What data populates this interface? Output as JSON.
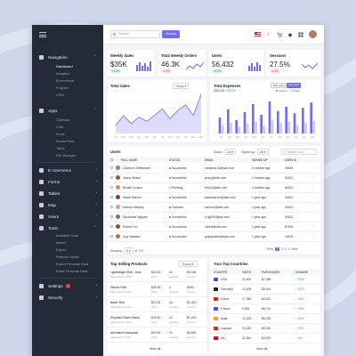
{
  "colors": {
    "accent": "#6f6cf5",
    "positive": "#1fa36a",
    "negative": "#e8453c",
    "warning": "#f0a020",
    "sidebar_bg": "#242a38"
  },
  "topbar": {
    "search_placeholder": "Search...",
    "search_button": "Search",
    "icons": [
      "flag-us-icon",
      "moon-icon",
      "cart-icon",
      "bell-icon",
      "grid-icon",
      "avatar"
    ]
  },
  "sidebar": {
    "sections": [
      {
        "label": "Navigation",
        "icon": "home-icon",
        "expanded": true,
        "items": [
          "Dashboard",
          "Analytics",
          "Ecommerce",
          "Projects",
          "CRM"
        ]
      },
      {
        "label": "Apps",
        "icon": "apps-icon",
        "expanded": true,
        "items": [
          "Calendar",
          "Chat",
          "Email",
          "Social Feed",
          "Tasks",
          "File Manager"
        ]
      },
      {
        "label": "E-commerce",
        "icon": "cart-icon"
      },
      {
        "label": "Forms",
        "icon": "forms-icon"
      },
      {
        "label": "Tables",
        "icon": "tables-icon"
      },
      {
        "label": "Map",
        "icon": "map-icon"
      },
      {
        "label": "Users",
        "icon": "users-icon"
      },
      {
        "label": "Tools",
        "icon": "tools-icon",
        "expanded": true,
        "items": [
          "Available Tools",
          "Import",
          "Export",
          "Platform Health",
          "Export Personal Data",
          "Erase Personal Data"
        ]
      },
      {
        "label": "Settings",
        "icon": "gear-icon",
        "badge": true
      },
      {
        "label": "Security",
        "icon": "shield-icon"
      }
    ]
  },
  "stats": [
    {
      "title": "Weekly Sales",
      "value": "$35K",
      "delta": "+4.5%",
      "positive": true
    },
    {
      "title": "Total Weekly Orders",
      "value": "46.3K",
      "delta": "-1.5%",
      "positive": false
    },
    {
      "title": "Users",
      "value": "56,432",
      "delta": "+6.5%",
      "positive": true
    },
    {
      "title": "Sessions",
      "value": "27.5%",
      "delta": "-1.5%",
      "positive": false
    }
  ],
  "total_sales": {
    "title": "Total Sales",
    "dropdown": "Yearly ▾"
  },
  "total_expenses": {
    "title": "Total Expenses",
    "value": "$45,000",
    "delta": "+23.7%",
    "toggle": [
      "This year",
      "Last year"
    ],
    "legend": [
      "Income",
      "Outgo"
    ]
  },
  "chart_data": [
    {
      "type": "area",
      "x": [
        "Jan",
        "Feb",
        "Mar",
        "Apr",
        "May",
        "Jun",
        "Jul",
        "Aug",
        "Sep",
        "Oct",
        "Nov",
        "Dec"
      ],
      "series": [
        {
          "values": [
            10,
            22,
            12,
            20,
            15,
            22,
            30,
            18,
            28,
            35,
            22,
            48
          ]
        }
      ],
      "ylim": [
        0,
        50
      ]
    },
    {
      "type": "bar",
      "x": [
        "Jan",
        "Feb",
        "Mar",
        "Apr",
        "May",
        "Jun",
        "Jul",
        "Aug",
        "Sep",
        "Oct",
        "Nov",
        "Dec"
      ],
      "series": [
        {
          "name": "Income",
          "values": [
            30,
            45,
            25,
            40,
            55,
            35,
            60,
            42,
            50,
            38,
            48,
            58
          ]
        },
        {
          "name": "Outgo",
          "values": [
            15,
            20,
            12,
            18,
            22,
            14,
            25,
            20,
            22,
            16,
            21,
            24
          ]
        }
      ],
      "ylim": [
        0,
        70
      ]
    }
  ],
  "users": {
    "title": "Users",
    "status_label": "Status:",
    "status_value": "All ▾",
    "signed_label": "Signed up:",
    "signed_value": "All ▾",
    "search_placeholder": "Search users",
    "columns": [
      "Full Name",
      "Status",
      "Email",
      "Signed Up",
      "User ID"
    ],
    "rows": [
      {
        "name": "Cameron Williamson",
        "status": "Successful",
        "email": "cameron14@site.com",
        "signed": "6 months ago",
        "id": "35645"
      },
      {
        "name": "Jenny Wilson",
        "status": "Successful",
        "email": "jenny@site.com",
        "signed": "2 months ago",
        "id": "54412"
      },
      {
        "name": "Bessie Cooper",
        "status": "Pending",
        "email": "bes12@site.com",
        "signed": "4 months ago",
        "id": "56321"
      },
      {
        "name": "Wade Warren",
        "status": "Successful",
        "email": "wadewarren@site.com",
        "signed": "1 year ago",
        "id": "54512"
      },
      {
        "name": "Kathryn Murphy",
        "status": "Overdue",
        "email": "kat.mur@site.com",
        "signed": "2 year ago",
        "id": "43321"
      },
      {
        "name": "Savannah Nguyen",
        "status": "Successful",
        "email": "s.ng290@site.com",
        "signed": "1 year ago",
        "id": "54512"
      },
      {
        "name": "Robert Fox",
        "status": "Successful",
        "email": "robert@site.com",
        "signed": "1 year ago",
        "id": "87632"
      },
      {
        "name": "Guy Hawkins",
        "status": "Successful",
        "email": "guyhawkins@site.com",
        "signed": "1 year ago",
        "id": "11876"
      }
    ],
    "showing_label": "Showing",
    "showing_value": "8 ▾",
    "of_label": "of 723",
    "pages": [
      "Prev",
      "1",
      "2",
      "3",
      "4",
      "Next"
    ],
    "active_page": "1"
  },
  "top_products": {
    "title": "Top Selling Products",
    "export_label": "Export",
    "items": [
      {
        "name": "Lightweight Shirt - blue",
        "date": "September 6, 2021",
        "price": "$24.50",
        "qty": "42",
        "amount": "$5,048"
      },
      {
        "name": "Sleeve Shirt",
        "date": "September 6, 2021",
        "price": "$35.99",
        "qty": "4",
        "amount": "$452"
      },
      {
        "name": "Basic Shirt",
        "date": "September 6, 2021",
        "price": "$10.52",
        "qty": "15",
        "amount": "$1,003"
      },
      {
        "name": "Elephant Stone Pants",
        "date": "September 6, 2021",
        "price": "$33.50",
        "qty": "12",
        "amount": "$1,240"
      },
      {
        "name": "Adventure Backpack",
        "date": "September 6, 2021",
        "price": "$19.90",
        "qty": "21",
        "amount": "$3,845"
      }
    ],
    "col_sub": [
      "Price",
      "Quantity",
      "Amount"
    ],
    "view_all": "View all"
  },
  "countries": {
    "title": "Your Top Countries",
    "columns": [
      "Country",
      "Visits",
      "Purchases",
      "Change"
    ],
    "rows": [
      {
        "country": "USA",
        "flag": "#3c5aa6",
        "visits": "11,302",
        "purchases": "$7,456",
        "change": "32%",
        "up": true
      },
      {
        "country": "Germany",
        "flag": "#222222",
        "visits": "13,405",
        "purchases": "$8,451",
        "change": "12%",
        "up": true
      },
      {
        "country": "China",
        "flag": "#de2910",
        "visits": "17,983",
        "purchases": "$4,522",
        "change": "15%",
        "up": false
      },
      {
        "country": "France",
        "flag": "#3d5cd6",
        "visits": "9,651",
        "purchases": "$6,741",
        "change": "23%",
        "up": true
      },
      {
        "country": "India",
        "flag": "#ff9933",
        "visits": "12,432",
        "purchases": "$6,332",
        "change": "14%",
        "up": false
      },
      {
        "country": "Canada",
        "flag": "#d52b1e",
        "visits": "15,452",
        "purchases": "$5,431",
        "change": "22%",
        "up": true
      },
      {
        "country": "UK",
        "flag": "#c8102e",
        "visits": "11,354",
        "purchases": "$4,521",
        "change": "4%",
        "up": true
      }
    ],
    "view_all": "View all"
  }
}
